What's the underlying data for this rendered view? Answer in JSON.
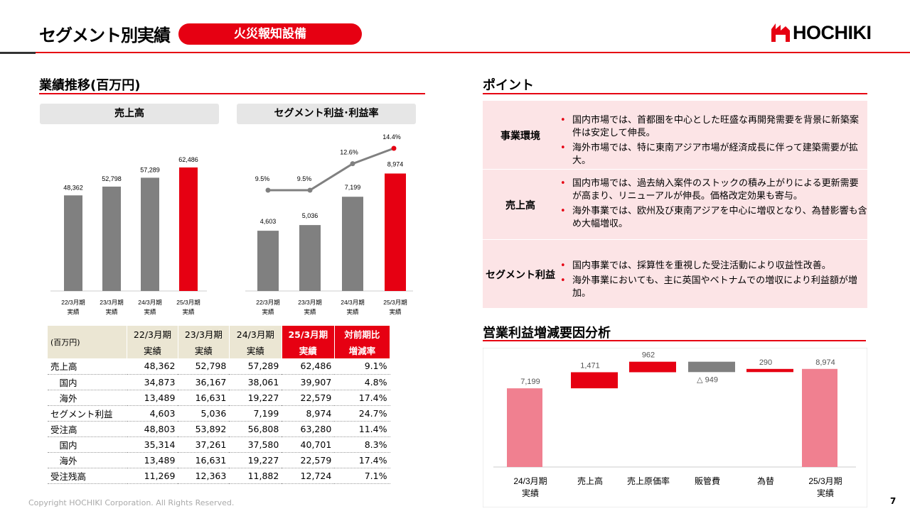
{
  "header": {
    "title": "セグメント別実績",
    "segment": "火災報知設備",
    "logo_text": "HOCHIKI"
  },
  "left": {
    "section_title": "業績推移(百万円)",
    "sales_box": "売上高",
    "profit_box": "セグメント利益･利益率"
  },
  "chart_data": [
    {
      "type": "bar",
      "title": "売上高",
      "categories": [
        "22/3月期\n実績",
        "23/3月期\n実績",
        "24/3月期\n実績",
        "25/3月期\n実績"
      ],
      "values": [
        48362,
        52798,
        57289,
        62486
      ],
      "labels": [
        "48,362",
        "52,798",
        "57,289",
        "62,486"
      ],
      "colors": [
        "#808080",
        "#808080",
        "#808080",
        "#e60012"
      ]
    },
    {
      "type": "bar+line",
      "title": "セグメント利益･利益率",
      "categories": [
        "22/3月期\n実績",
        "23/3月期\n実績",
        "24/3月期\n実績",
        "25/3月期\n実績"
      ],
      "values": [
        4603,
        5036,
        7199,
        8974
      ],
      "labels": [
        "4,603",
        "5,036",
        "7,199",
        "8,974"
      ],
      "rate": [
        9.5,
        9.5,
        12.6,
        14.4
      ],
      "rate_labels": [
        "9.5%",
        "9.5%",
        "12.6%",
        "14.4%"
      ],
      "colors": [
        "#808080",
        "#808080",
        "#808080",
        "#e60012"
      ]
    },
    {
      "type": "waterfall",
      "title": "営業利益増減要因分析",
      "categories": [
        "24/3月期\n実績",
        "売上高",
        "売上原価率",
        "販管費",
        "為替",
        "25/3月期\n実績"
      ],
      "steps": [
        7199,
        1471,
        962,
        -949,
        290,
        8974
      ],
      "labels": [
        "7,199",
        "1,471",
        "962",
        "△ 949",
        "290",
        "8,974"
      ]
    }
  ],
  "table": {
    "unit": "(百万円)",
    "headers": [
      [
        "22/3月期",
        "実績"
      ],
      [
        "23/3月期",
        "実績"
      ],
      [
        "24/3月期",
        "実績"
      ],
      [
        "25/3月期",
        "実績"
      ],
      [
        "対前期比",
        "増減率"
      ]
    ],
    "rows": [
      [
        "売上高",
        "48,362",
        "52,798",
        "57,289",
        "62,486",
        "9.1%"
      ],
      [
        "　国内",
        "34,873",
        "36,167",
        "38,061",
        "39,907",
        "4.8%"
      ],
      [
        "　海外",
        "13,489",
        "16,631",
        "19,227",
        "22,579",
        "17.4%"
      ],
      [
        "セグメント利益",
        "4,603",
        "5,036",
        "7,199",
        "8,974",
        "24.7%"
      ],
      [
        "受注高",
        "48,803",
        "53,892",
        "56,808",
        "63,280",
        "11.4%"
      ],
      [
        "　国内",
        "35,314",
        "37,261",
        "37,580",
        "40,701",
        "8.3%"
      ],
      [
        "　海外",
        "13,489",
        "16,631",
        "19,227",
        "22,579",
        "17.4%"
      ],
      [
        "受注残高",
        "11,269",
        "12,363",
        "11,882",
        "12,724",
        "7.1%"
      ]
    ]
  },
  "points": {
    "title": "ポイント",
    "rows": [
      {
        "label": "事業環境",
        "items": [
          "国内市場では、首都圏を中心とした旺盛な再開発需要を背景に新築案件は安定して伸長。",
          "海外市場では、特に東南アジア市場が経済成長に伴って建築需要が拡大。"
        ]
      },
      {
        "label": "売上高",
        "items": [
          "国内市場では、過去納入案件のストックの積み上がりによる更新需要が高まり、リニューアルが伸長。価格改定効果も寄与。",
          "海外事業では、欧州及び東南アジアを中心に増収となり、為替影響も含め大幅増収。"
        ]
      },
      {
        "label": "セグメント利益",
        "items": [
          "国内事業では、採算性を重視した受注活動により収益性改善。",
          "海外事業においても、主に英国やベトナムでの増収により利益額が増加。"
        ]
      }
    ]
  },
  "waterfall_title": "営業利益増減要因分析",
  "footer": {
    "copyright": "Copyright HOCHIKI Corporation. All Rights Reserved.",
    "page": "7"
  },
  "colors": {
    "accent": "#e60012",
    "bar_gray": "#808080",
    "pink": "#f08090"
  }
}
